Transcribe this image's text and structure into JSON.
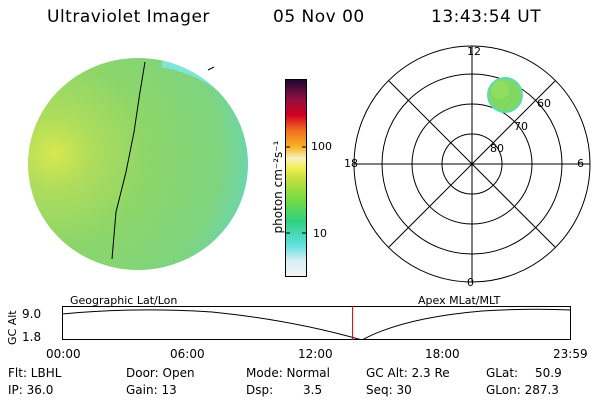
{
  "header": {
    "instrument": "Ultraviolet Imager",
    "date": "05 Nov 00",
    "time": "13:43:54 UT"
  },
  "colorbar": {
    "label": "photon cm⁻²s⁻¹",
    "tick_100": "100",
    "tick_10": "10"
  },
  "polar": {
    "label_12": "12",
    "label_18": "18",
    "label_6": "6",
    "label_0": "0",
    "label_60": "60",
    "label_70": "70",
    "label_80": "80"
  },
  "altitude_panel": {
    "left_title": "Geographic Lat/Lon",
    "right_title": "Apex MLat/MLT",
    "axis_label": "GC Alt",
    "y_top": "9.0",
    "y_bottom": "1.8",
    "x_ticks": [
      "00:00",
      "06:00",
      "12:00",
      "18:00",
      "23:59"
    ],
    "marker_time_hours": 13.73
  },
  "info": {
    "flt_label": "Flt: LBHL",
    "ip_label": "IP: 36.0",
    "door_label": "Door: Open",
    "gain_label": "Gain: 13",
    "mode_label": "Mode: Normal",
    "dsp_label": "Dsp:",
    "dsp_value": "3.5",
    "gcalt_label": "GC Alt: 2.3 Re",
    "seq_label": "Seq: 30",
    "glat_label": "GLat:",
    "glat_value": "50.9",
    "glon_label": "GLon: 287.3"
  },
  "colors": {
    "marker": "#cc0000"
  }
}
